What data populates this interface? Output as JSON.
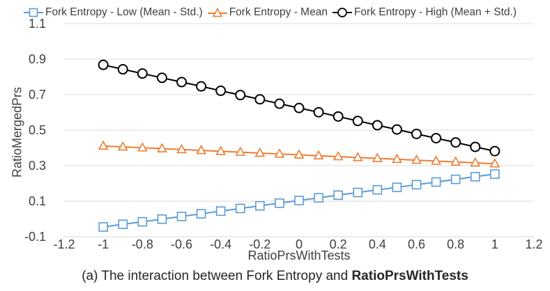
{
  "chart_data": {
    "type": "line",
    "title": "",
    "xlabel": "RatioPrsWithTests",
    "ylabel": "RatioMergedPrs",
    "xlim": [
      -1.2,
      1.2
    ],
    "ylim": [
      -0.1,
      1.1
    ],
    "x_ticks": [
      "-1.2",
      "-1",
      "-0.8",
      "-0.6",
      "-0.4",
      "-0.2",
      "0",
      "0.2",
      "0.4",
      "0.6",
      "0.8",
      "1",
      "1.2"
    ],
    "y_ticks": [
      "-0.1",
      "0.1",
      "0.3",
      "0.5",
      "0.7",
      "0.9",
      "1.1"
    ],
    "grid": "horizontal",
    "legend_position": "top",
    "x": [
      -1,
      -0.9,
      -0.8,
      -0.7,
      -0.6,
      -0.5,
      -0.4,
      -0.3,
      -0.2,
      -0.1,
      0,
      0.1,
      0.2,
      0.3,
      0.4,
      0.5,
      0.6,
      0.7,
      0.8,
      0.9,
      1
    ],
    "series": [
      {
        "name": "Fork Entropy - Low (Mean - Std.)",
        "color": "#5b9bd5",
        "marker": "square",
        "values": [
          -0.045,
          -0.03,
          -0.016,
          -0.001,
          0.014,
          0.029,
          0.044,
          0.059,
          0.074,
          0.089,
          0.104,
          0.119,
          0.134,
          0.149,
          0.164,
          0.178,
          0.193,
          0.208,
          0.223,
          0.238,
          0.253
        ]
      },
      {
        "name": "Fork Entropy - Mean",
        "color": "#ed7d31",
        "marker": "triangle",
        "values": [
          0.411,
          0.406,
          0.401,
          0.396,
          0.391,
          0.386,
          0.381,
          0.376,
          0.371,
          0.366,
          0.361,
          0.356,
          0.351,
          0.346,
          0.341,
          0.336,
          0.331,
          0.326,
          0.321,
          0.316,
          0.311
        ]
      },
      {
        "name": "Fork Entropy - High (Mean + Std.)",
        "color": "#000000",
        "marker": "circle",
        "values": [
          0.868,
          0.843,
          0.819,
          0.795,
          0.771,
          0.747,
          0.722,
          0.698,
          0.674,
          0.649,
          0.625,
          0.601,
          0.577,
          0.552,
          0.528,
          0.504,
          0.479,
          0.455,
          0.431,
          0.406,
          0.382
        ]
      }
    ]
  },
  "caption": {
    "prefix": "(a) The interaction between Fork Entropy and ",
    "bold": "RatioPrsWithTests"
  }
}
